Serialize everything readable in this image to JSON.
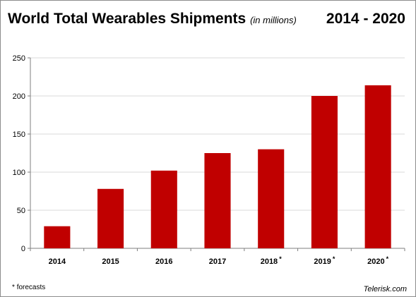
{
  "chart_data": {
    "type": "bar",
    "title": "World Total Wearables Shipments",
    "subtitle": "(in millions)",
    "period": "2014 - 2020",
    "categories": [
      "2014",
      "2015",
      "2016",
      "2017",
      "2018",
      "2019",
      "2020"
    ],
    "forecast": [
      false,
      false,
      false,
      false,
      true,
      true,
      true
    ],
    "forecast_marker": "*",
    "values": [
      29,
      78,
      102,
      125,
      130,
      200,
      214
    ],
    "ylim": [
      0,
      250
    ],
    "yticks": [
      0,
      50,
      100,
      150,
      200,
      250
    ],
    "grid": true,
    "bar_color": "#c00000",
    "grid_color": "#d9d9d9",
    "xlabel": "",
    "ylabel": ""
  },
  "footnote": {
    "marker": "*",
    "text": "forecasts"
  },
  "source": "Telerisk.com"
}
